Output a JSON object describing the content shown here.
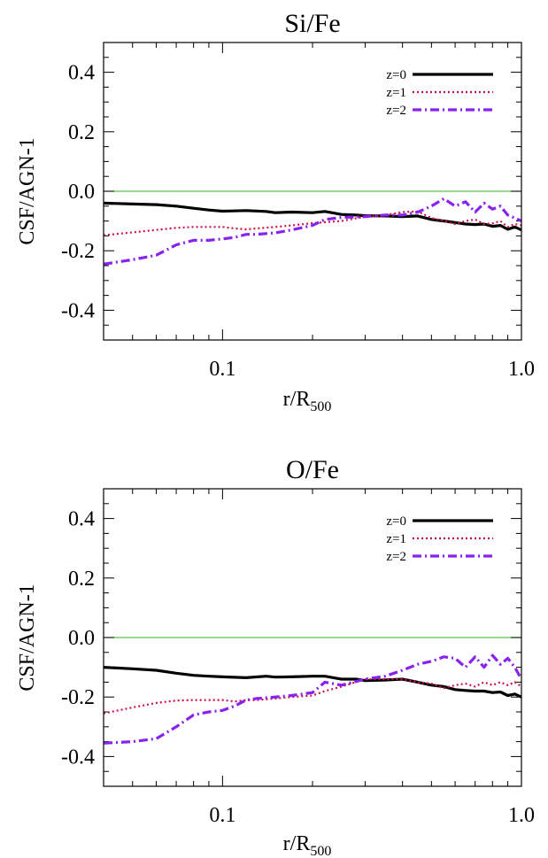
{
  "chart_data": [
    {
      "type": "line",
      "title": "Si/Fe",
      "xlabel": "r/R",
      "xlabel_sub": "500",
      "ylabel": "CSF/AGN-1",
      "xscale": "log",
      "xlim": [
        0.04,
        1.0
      ],
      "ylim": [
        -0.5,
        0.5
      ],
      "xticks": [
        0.1,
        1.0
      ],
      "xtick_labels": [
        "0.1",
        "1.0"
      ],
      "yticks": [
        -0.4,
        -0.2,
        0.0,
        0.2,
        0.4
      ],
      "ytick_labels": [
        "-0.4",
        "-0.2",
        "0.0",
        "0.2",
        "0.4"
      ],
      "reference_line": {
        "y": 0.0,
        "color": "#55cc44"
      },
      "legend_position": "top-right",
      "series": [
        {
          "name": "z=0",
          "color": "#000000",
          "style": "solid",
          "x": [
            0.04,
            0.05,
            0.06,
            0.07,
            0.08,
            0.09,
            0.1,
            0.12,
            0.14,
            0.15,
            0.17,
            0.2,
            0.22,
            0.25,
            0.28,
            0.3,
            0.35,
            0.4,
            0.45,
            0.5,
            0.55,
            0.6,
            0.65,
            0.7,
            0.75,
            0.8,
            0.85,
            0.9,
            0.95,
            1.0
          ],
          "y": [
            -0.04,
            -0.043,
            -0.045,
            -0.05,
            -0.057,
            -0.063,
            -0.067,
            -0.065,
            -0.068,
            -0.072,
            -0.07,
            -0.072,
            -0.068,
            -0.078,
            -0.08,
            -0.082,
            -0.083,
            -0.085,
            -0.083,
            -0.095,
            -0.1,
            -0.105,
            -0.11,
            -0.112,
            -0.11,
            -0.118,
            -0.115,
            -0.128,
            -0.12,
            -0.13
          ]
        },
        {
          "name": "z=1",
          "color": "#cc1144",
          "style": "dotted",
          "x": [
            0.04,
            0.05,
            0.06,
            0.07,
            0.08,
            0.09,
            0.1,
            0.11,
            0.12,
            0.13,
            0.15,
            0.17,
            0.2,
            0.25,
            0.3,
            0.35,
            0.4,
            0.45,
            0.5,
            0.55,
            0.6,
            0.65,
            0.7,
            0.75,
            0.8,
            0.85,
            0.9,
            0.95,
            1.0
          ],
          "y": [
            -0.148,
            -0.138,
            -0.13,
            -0.123,
            -0.12,
            -0.12,
            -0.12,
            -0.125,
            -0.128,
            -0.125,
            -0.12,
            -0.115,
            -0.107,
            -0.1,
            -0.085,
            -0.08,
            -0.07,
            -0.068,
            -0.09,
            -0.1,
            -0.11,
            -0.1,
            -0.095,
            -0.11,
            -0.108,
            -0.1,
            -0.12,
            -0.11,
            -0.115
          ]
        },
        {
          "name": "z=2",
          "color": "#8822ee",
          "style": "dashdot",
          "x": [
            0.04,
            0.05,
            0.06,
            0.07,
            0.08,
            0.09,
            0.1,
            0.11,
            0.12,
            0.13,
            0.15,
            0.17,
            0.2,
            0.22,
            0.25,
            0.3,
            0.35,
            0.4,
            0.45,
            0.5,
            0.55,
            0.6,
            0.65,
            0.7,
            0.75,
            0.8,
            0.85,
            0.9,
            0.95,
            1.0
          ],
          "y": [
            -0.245,
            -0.23,
            -0.215,
            -0.18,
            -0.165,
            -0.165,
            -0.16,
            -0.155,
            -0.145,
            -0.145,
            -0.14,
            -0.13,
            -0.115,
            -0.095,
            -0.088,
            -0.085,
            -0.08,
            -0.08,
            -0.07,
            -0.05,
            -0.025,
            -0.05,
            -0.035,
            -0.07,
            -0.04,
            -0.06,
            -0.05,
            -0.08,
            -0.09,
            -0.1
          ]
        }
      ]
    },
    {
      "type": "line",
      "title": "O/Fe",
      "xlabel": "r/R",
      "xlabel_sub": "500",
      "ylabel": "CSF/AGN-1",
      "xscale": "log",
      "xlim": [
        0.04,
        1.0
      ],
      "ylim": [
        -0.5,
        0.5
      ],
      "xticks": [
        0.1,
        1.0
      ],
      "xtick_labels": [
        "0.1",
        "1.0"
      ],
      "yticks": [
        -0.4,
        -0.2,
        0.0,
        0.2,
        0.4
      ],
      "ytick_labels": [
        "-0.4",
        "-0.2",
        "0.0",
        "0.2",
        "0.4"
      ],
      "reference_line": {
        "y": 0.0,
        "color": "#55cc44"
      },
      "legend_position": "top-right",
      "series": [
        {
          "name": "z=0",
          "color": "#000000",
          "style": "solid",
          "x": [
            0.04,
            0.05,
            0.06,
            0.07,
            0.08,
            0.09,
            0.1,
            0.12,
            0.14,
            0.15,
            0.17,
            0.2,
            0.22,
            0.25,
            0.28,
            0.3,
            0.35,
            0.4,
            0.45,
            0.5,
            0.55,
            0.6,
            0.65,
            0.7,
            0.75,
            0.8,
            0.85,
            0.9,
            0.95,
            1.0
          ],
          "y": [
            -0.1,
            -0.105,
            -0.11,
            -0.12,
            -0.127,
            -0.13,
            -0.132,
            -0.135,
            -0.13,
            -0.133,
            -0.132,
            -0.13,
            -0.13,
            -0.14,
            -0.14,
            -0.145,
            -0.143,
            -0.14,
            -0.15,
            -0.16,
            -0.165,
            -0.175,
            -0.178,
            -0.18,
            -0.18,
            -0.185,
            -0.183,
            -0.195,
            -0.19,
            -0.2
          ]
        },
        {
          "name": "z=1",
          "color": "#cc1144",
          "style": "dotted",
          "x": [
            0.04,
            0.05,
            0.06,
            0.07,
            0.08,
            0.09,
            0.1,
            0.11,
            0.12,
            0.13,
            0.15,
            0.17,
            0.2,
            0.22,
            0.25,
            0.3,
            0.35,
            0.4,
            0.45,
            0.5,
            0.55,
            0.6,
            0.65,
            0.7,
            0.75,
            0.8,
            0.85,
            0.9,
            0.95,
            1.0
          ],
          "y": [
            -0.255,
            -0.235,
            -0.22,
            -0.212,
            -0.21,
            -0.21,
            -0.21,
            -0.215,
            -0.21,
            -0.21,
            -0.205,
            -0.2,
            -0.195,
            -0.18,
            -0.165,
            -0.14,
            -0.14,
            -0.14,
            -0.15,
            -0.155,
            -0.17,
            -0.16,
            -0.155,
            -0.165,
            -0.15,
            -0.16,
            -0.15,
            -0.16,
            -0.15,
            -0.165
          ]
        },
        {
          "name": "z=2",
          "color": "#8822ee",
          "style": "dashdot",
          "x": [
            0.04,
            0.05,
            0.06,
            0.07,
            0.08,
            0.09,
            0.1,
            0.11,
            0.12,
            0.13,
            0.15,
            0.17,
            0.2,
            0.22,
            0.25,
            0.3,
            0.35,
            0.4,
            0.45,
            0.5,
            0.55,
            0.6,
            0.65,
            0.7,
            0.75,
            0.8,
            0.85,
            0.9,
            0.95,
            1.0
          ],
          "y": [
            -0.355,
            -0.35,
            -0.34,
            -0.3,
            -0.26,
            -0.25,
            -0.245,
            -0.23,
            -0.21,
            -0.205,
            -0.2,
            -0.195,
            -0.185,
            -0.15,
            -0.16,
            -0.14,
            -0.13,
            -0.11,
            -0.09,
            -0.08,
            -0.065,
            -0.07,
            -0.1,
            -0.065,
            -0.1,
            -0.06,
            -0.09,
            -0.07,
            -0.1,
            -0.14
          ]
        }
      ]
    }
  ]
}
